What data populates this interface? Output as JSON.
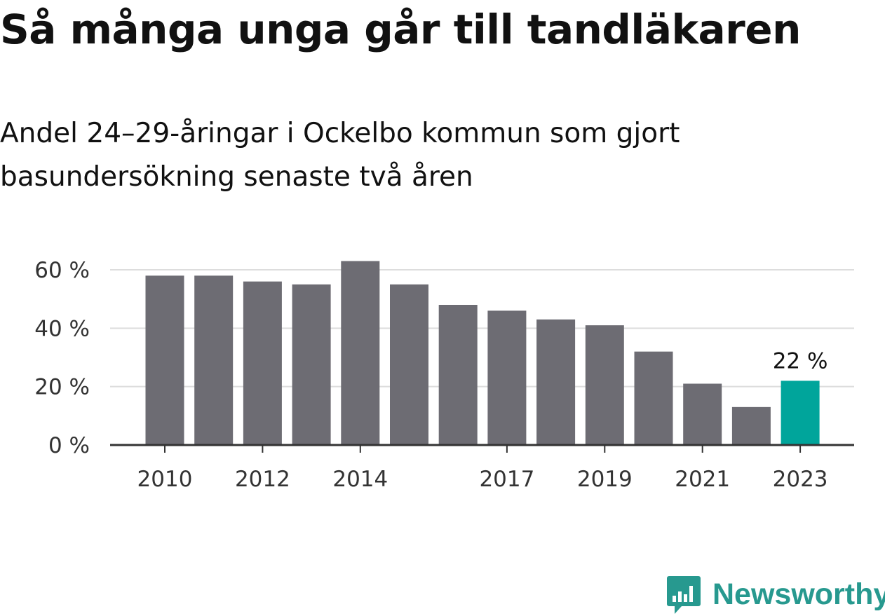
{
  "title": "Så många unga går till tandläkaren",
  "subtitle": "Andel 24–29-åringar i Ockelbo kommun som gjort basundersökning senaste två åren",
  "brand": {
    "name": "Newsworthy",
    "icon": "newsworthy-logo-icon",
    "color": "#27998f"
  },
  "colors": {
    "bar": "#6d6c73",
    "highlight": "#00a59b",
    "grid": "#dddddd",
    "axis": "#333333"
  },
  "chart_data": {
    "type": "bar",
    "title": "Så många unga går till tandläkaren",
    "subtitle": "Andel 24–29-åringar i Ockelbo kommun som gjort basundersökning senaste två åren",
    "categories": [
      "2010",
      "2011",
      "2012",
      "2013",
      "2014",
      "2015",
      "2016",
      "2017",
      "2018",
      "2019",
      "2020",
      "2021",
      "2022",
      "2023"
    ],
    "values": [
      58,
      58,
      56,
      55,
      63,
      55,
      48,
      46,
      43,
      41,
      32,
      21,
      13,
      22
    ],
    "unit": "%",
    "ylim": [
      0,
      65
    ],
    "yticks": [
      0,
      20,
      40,
      60
    ],
    "ytick_labels": [
      "0 %",
      "20 %",
      "40 %",
      "60 %"
    ],
    "xtick_labels": [
      "2010",
      "2012",
      "2014",
      "2017",
      "2019",
      "2021",
      "2023"
    ],
    "highlight_index": 13,
    "data_labels": [
      {
        "index": 13,
        "text": "22 %"
      }
    ],
    "grid": true,
    "legend": "none"
  }
}
